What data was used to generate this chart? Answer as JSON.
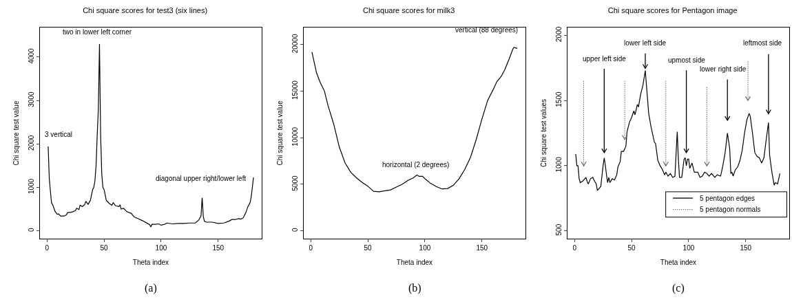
{
  "chart_data": [
    {
      "type": "line",
      "title": "Chi square scores for test3 (six lines)",
      "xlabel": "Theta index",
      "ylabel": "Chi square test value",
      "color": "#000000",
      "line_style": "solid",
      "grid": false,
      "xlim": [
        -6.2,
        188.2
      ],
      "xticks": [
        0,
        50,
        100,
        150
      ],
      "ylim": [
        -180,
        4680
      ],
      "yticks": [
        0,
        1000,
        2000,
        3000,
        4000
      ],
      "x": [
        1,
        2,
        3,
        4,
        5,
        7,
        9,
        10,
        12,
        15,
        17,
        18,
        22,
        25,
        26,
        28,
        29,
        31,
        33,
        34,
        36,
        38,
        40,
        41,
        42,
        43,
        44,
        45,
        46,
        47,
        48,
        49,
        50,
        52,
        55,
        57,
        58,
        60,
        63,
        64,
        65,
        67,
        70,
        74,
        76,
        78,
        80,
        84,
        88,
        90,
        91,
        92,
        95,
        98,
        100,
        103,
        105,
        110,
        115,
        120,
        125,
        130,
        133,
        135,
        136,
        137,
        138,
        140,
        145,
        150,
        155,
        160,
        162,
        165,
        168,
        170,
        172,
        174,
        176,
        178,
        179,
        180,
        181
      ],
      "values": [
        1940,
        1200,
        900,
        640,
        600,
        450,
        380,
        390,
        340,
        340,
        370,
        420,
        430,
        470,
        520,
        490,
        590,
        560,
        600,
        680,
        610,
        700,
        950,
        1000,
        1150,
        1500,
        2200,
        2800,
        4300,
        2200,
        1300,
        1000,
        950,
        700,
        620,
        590,
        650,
        580,
        560,
        600,
        500,
        520,
        440,
        400,
        330,
        300,
        280,
        230,
        170,
        140,
        90,
        150,
        150,
        160,
        130,
        150,
        180,
        160,
        170,
        170,
        180,
        180,
        250,
        340,
        760,
        330,
        220,
        200,
        200,
        170,
        180,
        230,
        260,
        260,
        280,
        270,
        300,
        400,
        550,
        650,
        780,
        1000,
        1230
      ],
      "annotations": [
        "two in lower left corner",
        "3 vertical",
        "diagonal upper right/lower left",
        "(a)"
      ]
    },
    {
      "type": "line",
      "title": "Chi square scores for milk3",
      "xlabel": "Theta index",
      "ylabel": "Chi square test value",
      "color": "#000000",
      "line_style": "solid",
      "grid": false,
      "xlim": [
        -6.2,
        188.2
      ],
      "xticks": [
        0,
        50,
        100,
        150
      ],
      "ylim": [
        -840,
        21840
      ],
      "yticks": [
        0,
        5000,
        10000,
        15000,
        20000
      ],
      "x": [
        1,
        5,
        8,
        12,
        15,
        20,
        25,
        30,
        35,
        40,
        45,
        50,
        55,
        60,
        65,
        70,
        75,
        80,
        85,
        90,
        93,
        95,
        98,
        100,
        105,
        110,
        115,
        120,
        125,
        130,
        135,
        140,
        145,
        150,
        155,
        160,
        163,
        167,
        170,
        174,
        177,
        178,
        181
      ],
      "values": [
        19200,
        17000,
        16000,
        15000,
        13500,
        11500,
        9000,
        7300,
        6300,
        5700,
        5200,
        4800,
        4250,
        4200,
        4300,
        4400,
        4700,
        5000,
        5400,
        5700,
        6000,
        5850,
        5850,
        5600,
        5100,
        4750,
        4500,
        4550,
        4900,
        5600,
        6600,
        7900,
        9800,
        12000,
        14000,
        15200,
        16000,
        16600,
        17300,
        18500,
        19500,
        19700,
        19600
      ],
      "annotations": [
        "vertical (88 degrees)",
        "horizontal (2 degrees)",
        "(b)"
      ]
    },
    {
      "type": "line",
      "title": "Chi square scores for Pentagon image",
      "xlabel": "Theta index",
      "ylabel": "Chi square test values",
      "grid": false,
      "xlim": [
        -6.2,
        188.2
      ],
      "xticks": [
        0,
        50,
        100,
        150
      ],
      "ylim": [
        440,
        2060
      ],
      "yticks": [
        500,
        1000,
        1500,
        2000
      ],
      "color": "#000000",
      "line_style": "solid",
      "series": [
        {
          "x": [
            1,
            2,
            3,
            4,
            5,
            7,
            9,
            10,
            11,
            12,
            14,
            16,
            17,
            19,
            20,
            22,
            23,
            25,
            26,
            27,
            28,
            29,
            30,
            31,
            33,
            35,
            37,
            38,
            40,
            41,
            43,
            45,
            46,
            48,
            50,
            52,
            53,
            55,
            56,
            58,
            60,
            62,
            63,
            65,
            67,
            70,
            71,
            73,
            75,
            77,
            79,
            80,
            82,
            84,
            86,
            88,
            90,
            91,
            92,
            94,
            96,
            97,
            98,
            99,
            100,
            101,
            103,
            105,
            108,
            110,
            112,
            114,
            116,
            118,
            120,
            123,
            125,
            128,
            130,
            132,
            134,
            136,
            137,
            138,
            139,
            141,
            143,
            145,
            147,
            149,
            151,
            153,
            154,
            156,
            158,
            160,
            162,
            164,
            166,
            168,
            170,
            171,
            173,
            175,
            176,
            178,
            180
          ],
          "values": [
            1090,
            1000,
            1000,
            900,
            870,
            880,
            900,
            910,
            880,
            860,
            900,
            910,
            890,
            860,
            810,
            830,
            840,
            1000,
            1060,
            1000,
            930,
            870,
            910,
            870,
            900,
            890,
            930,
            990,
            1030,
            1110,
            1110,
            1150,
            1260,
            1330,
            1370,
            1420,
            1390,
            1470,
            1450,
            1550,
            1620,
            1730,
            1620,
            1400,
            1300,
            1180,
            1170,
            1040,
            1000,
            970,
            930,
            950,
            920,
            940,
            910,
            920,
            1260,
            1050,
            910,
            910,
            1050,
            1060,
            1000,
            1050,
            1050,
            980,
            1020,
            950,
            950,
            910,
            920,
            950,
            940,
            920,
            940,
            910,
            930,
            920,
            1000,
            1100,
            1250,
            1130,
            940,
            950,
            920,
            970,
            990,
            1040,
            1120,
            1250,
            1350,
            1400,
            1380,
            1250,
            1100,
            1070,
            1060,
            1020,
            1060,
            1200,
            1330,
            1080,
            950,
            850,
            870,
            860,
            940
          ]
        }
      ],
      "annotations": [
        "upper left side",
        "lower left side",
        "upmost side",
        "lower right side",
        "leftmost side",
        "5 pentagon edges",
        "5 pentagon normals",
        "(c)"
      ]
    }
  ]
}
